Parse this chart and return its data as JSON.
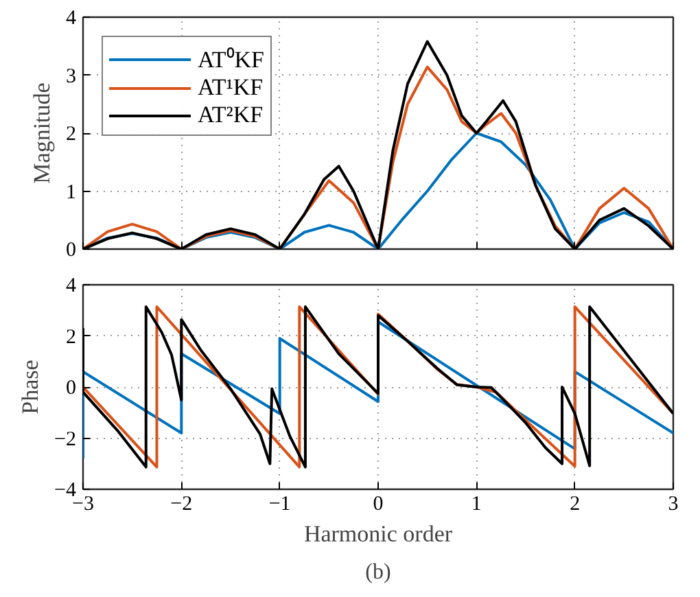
{
  "chart_data": [
    {
      "type": "line",
      "ylabel": "Magnitude",
      "xlim": [
        -3,
        3
      ],
      "ylim": [
        0,
        4
      ],
      "xticks": [
        -3,
        -2,
        -1,
        0,
        1,
        2,
        3
      ],
      "yticks": [
        0,
        1,
        2,
        3,
        4
      ],
      "grid": true,
      "legend": "top left",
      "tick_labels": "y",
      "line_style": "solid",
      "series": [
        {
          "name": "AT⁰KF",
          "color": "#0072bd",
          "x": [
            -3,
            -2.75,
            -2.5,
            -2.25,
            -2,
            -1.75,
            -1.5,
            -1.25,
            -1,
            -0.75,
            -0.5,
            -0.25,
            0,
            0.25,
            0.5,
            0.75,
            1,
            1.25,
            1.5,
            1.75,
            2,
            2.25,
            2.5,
            2.75,
            3
          ],
          "values": [
            0,
            0.19,
            0.27,
            0.19,
            0,
            0.2,
            0.29,
            0.2,
            0,
            0.29,
            0.41,
            0.29,
            0,
            0.52,
            1.0,
            1.55,
            2.0,
            1.85,
            1.45,
            0.85,
            0,
            0.45,
            0.63,
            0.47,
            0
          ]
        },
        {
          "name": "AT¹KF",
          "color": "#d95319",
          "x": [
            -3,
            -2.75,
            -2.5,
            -2.25,
            -2,
            -1.75,
            -1.5,
            -1.25,
            -1,
            -0.75,
            -0.5,
            -0.25,
            0,
            0.15,
            0.3,
            0.5,
            0.7,
            0.85,
            1,
            1.1,
            1.25,
            1.4,
            1.6,
            1.8,
            2,
            2.25,
            2.5,
            2.75,
            3
          ],
          "values": [
            0,
            0.3,
            0.43,
            0.3,
            0,
            0.22,
            0.32,
            0.22,
            0,
            0.6,
            1.18,
            0.8,
            0,
            1.5,
            2.5,
            3.14,
            2.75,
            2.2,
            2.0,
            2.15,
            2.34,
            2.0,
            1.1,
            0.4,
            0,
            0.7,
            1.05,
            0.7,
            0
          ]
        },
        {
          "name": "AT²KF",
          "color": "#000000",
          "x": [
            -3,
            -2.75,
            -2.5,
            -2.25,
            -2,
            -1.75,
            -1.5,
            -1.25,
            -1,
            -0.75,
            -0.55,
            -0.4,
            -0.25,
            0,
            0.15,
            0.3,
            0.5,
            0.7,
            0.85,
            1,
            1.1,
            1.27,
            1.4,
            1.6,
            1.8,
            2,
            2.25,
            2.5,
            2.75,
            3
          ],
          "values": [
            0,
            0.18,
            0.28,
            0.18,
            0,
            0.25,
            0.35,
            0.25,
            0,
            0.6,
            1.2,
            1.43,
            1.0,
            0,
            1.7,
            2.85,
            3.58,
            3.0,
            2.3,
            2.0,
            2.2,
            2.56,
            2.2,
            1.1,
            0.35,
            0,
            0.5,
            0.7,
            0.4,
            0
          ]
        }
      ]
    },
    {
      "type": "line",
      "xlabel": "Harmonic order",
      "ylabel": "Phase",
      "annotations": [
        "(b)"
      ],
      "xlim": [
        -3,
        3
      ],
      "ylim": [
        -4,
        4
      ],
      "xticks": [
        -3,
        -2,
        -1,
        0,
        1,
        2,
        3
      ],
      "yticks": [
        -4,
        -2,
        0,
        2,
        4
      ],
      "grid": true,
      "line_style": "solid",
      "series": [
        {
          "color": "#0072bd",
          "x": [
            -3,
            -3,
            -3,
            -2,
            -2,
            -1,
            -1,
            0,
            0,
            2,
            2,
            3
          ],
          "values": [
            -2.8,
            -0.25,
            0.6,
            -1.8,
            1.3,
            -1.04,
            1.9,
            -0.57,
            2.55,
            -2.42,
            0.6,
            -1.8
          ]
        },
        {
          "color": "#d95319",
          "x": [
            -3,
            -2.25,
            -2.25,
            -0.8,
            -0.8,
            0,
            0,
            0.3,
            0.6,
            0.8,
            1.0,
            1.2,
            1.5,
            2,
            2,
            3
          ],
          "values": [
            0.0,
            -3.13,
            3.14,
            -3.13,
            3.14,
            -0.28,
            2.85,
            1.8,
            0.7,
            0.1,
            0.0,
            -0.2,
            -1.3,
            -3.1,
            3.14,
            -1.04
          ]
        },
        {
          "color": "#000000",
          "x": [
            -3,
            -3,
            -2.65,
            -2.36,
            -2.36,
            -2.2,
            -2.1,
            -2,
            -2,
            -1.8,
            -1.5,
            -1.2,
            -1.1,
            -1.08,
            -0.9,
            -0.74,
            -0.74,
            -0.4,
            0,
            0,
            0.3,
            0.6,
            0.8,
            1.0,
            1.15,
            1.3,
            1.5,
            1.7,
            1.87,
            1.87,
            2.0,
            2.15,
            2.15,
            3
          ],
          "values": [
            2.3,
            -0.2,
            -1.7,
            -3.13,
            3.14,
            2.14,
            1.26,
            -0.51,
            2.64,
            1.43,
            -0.07,
            -1.84,
            -3.0,
            -0.07,
            -1.9,
            -3.13,
            3.14,
            1.3,
            -0.25,
            2.8,
            1.79,
            0.73,
            0.09,
            0.0,
            -0.02,
            -0.6,
            -1.4,
            -2.37,
            -3.0,
            0.0,
            -1.04,
            -3.08,
            3.14,
            -1.04
          ]
        }
      ]
    }
  ]
}
